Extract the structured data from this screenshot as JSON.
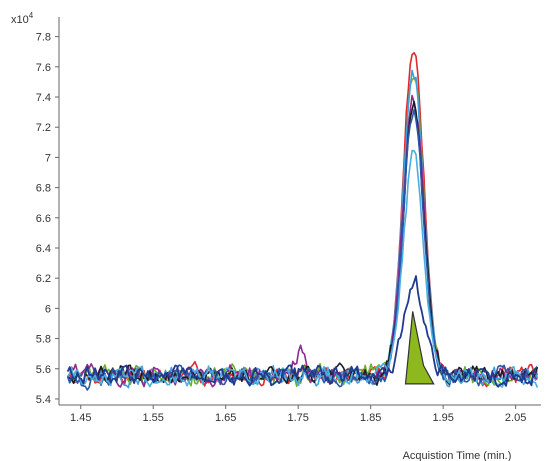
{
  "chart_data": {
    "type": "line",
    "ylabel_multiplier_base": "x10",
    "ylabel_multiplier_exp": "4",
    "xlabel": "Acquistion Time (min.)",
    "xlim": [
      1.42,
      2.085
    ],
    "ylim": [
      5.36,
      7.93
    ],
    "x_ticks": [
      1.45,
      1.55,
      1.65,
      1.75,
      1.85,
      1.95,
      2.05
    ],
    "x_tick_labels": [
      "1.45",
      "1.55",
      "1.65",
      "1.75",
      "1.85",
      "1.95",
      "2.05"
    ],
    "y_ticks": [
      5.4,
      5.6,
      5.8,
      6.0,
      6.2,
      6.4,
      6.6,
      6.8,
      7.0,
      7.2,
      7.4,
      7.6,
      7.8
    ],
    "y_tick_labels": [
      "5.4",
      "5.6",
      "5.8",
      "6",
      "6.2",
      "6.4",
      "6.6",
      "6.8",
      "7",
      "7.2",
      "7.4",
      "7.6",
      "7.8"
    ],
    "grid": false,
    "baseline": 5.5,
    "peak_time": 1.909,
    "peak_halfwidth": 0.014,
    "series": [
      {
        "color": "#e0282d",
        "peak_height": 7.74
      },
      {
        "color": "#6fae2a",
        "peak_height": 7.57
      },
      {
        "color": "#3fa0d8",
        "peak_height": 7.55
      },
      {
        "color": "#8e2a8e",
        "peak_height": 7.4
      },
      {
        "color": "#1c1c24",
        "peak_height": 7.35
      },
      {
        "color": "#2c56a8",
        "peak_height": 7.3
      },
      {
        "color": "#4aaee0",
        "peak_height": 7.02
      }
    ],
    "highlight": {
      "line_color": "#203a8c",
      "fill_color": "#8db81e",
      "peak_height": 6.16,
      "fill_points": [
        [
          1.898,
          5.5
        ],
        [
          1.908,
          5.98
        ],
        [
          1.923,
          5.62
        ],
        [
          1.937,
          5.5
        ]
      ]
    }
  }
}
